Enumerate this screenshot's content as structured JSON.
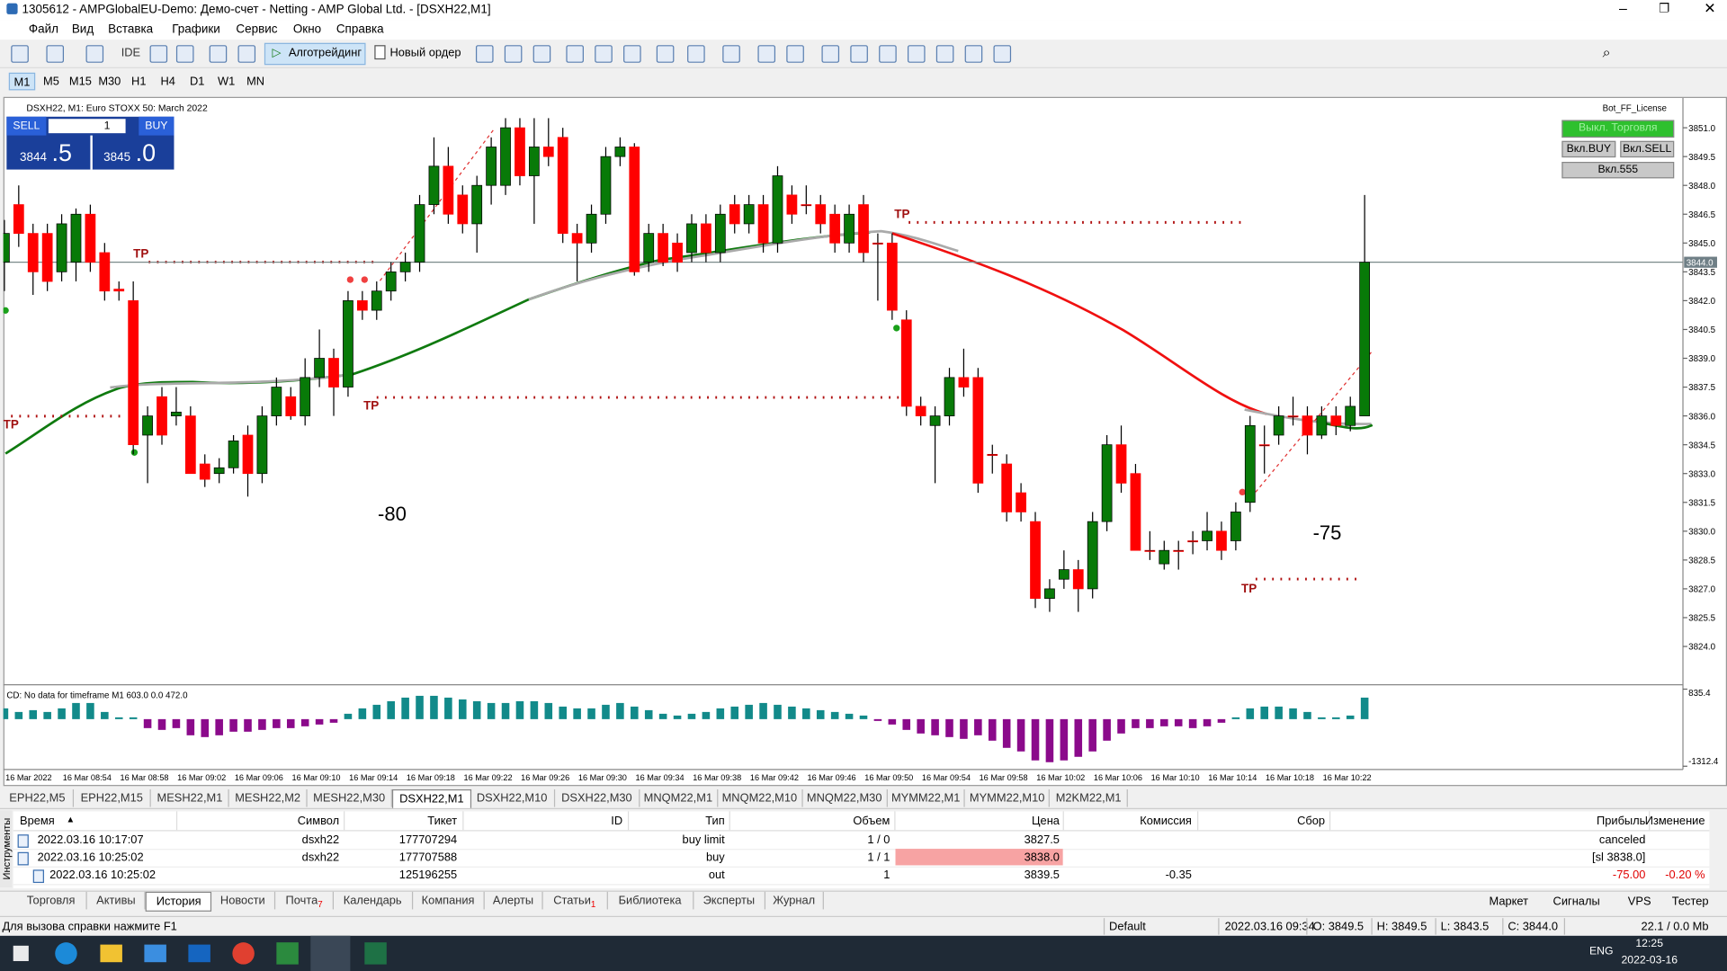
{
  "window": {
    "title": "1305612 - AMPGlobalEU-Demo: Демо-счет - Netting - AMP Global Ltd. - [DSXH22,M1]"
  },
  "menu": [
    "Файл",
    "Вид",
    "Вставка",
    "Графики",
    "Сервис",
    "Окно",
    "Справка"
  ],
  "toolbar": {
    "ide": "IDE",
    "algo": "Алготрейдинг",
    "order": "Новый ордер"
  },
  "timeframes": [
    "M1",
    "M5",
    "M15",
    "M30",
    "H1",
    "H4",
    "D1",
    "W1",
    "MN"
  ],
  "chart": {
    "type": "candlestick",
    "title": "DSXH22, M1:  Euro STOXX 50: March 2022",
    "trade_panel": {
      "sell": "SELL",
      "buy": "BUY",
      "lot": "1",
      "bid_big": "3844",
      "bid_small": ".5",
      "ask_big": "3845",
      "ask_small": ".0"
    },
    "bot": {
      "license": "Bot_FF_License",
      "trade": "Выкл. Торговля",
      "buy": "Вкл.BUY",
      "sell": "Вкл.SELL",
      "b555": "Вкл.555"
    },
    "ylim": [
      3822.55,
      3852.55
    ],
    "yticks": [
      {
        "value": 3824,
        "label": "3824.0"
      },
      {
        "value": 3825.5,
        "label": "3825.5"
      },
      {
        "value": 3827,
        "label": "3827.0"
      },
      {
        "value": 3828.5,
        "label": "3828.5"
      },
      {
        "value": 3830,
        "label": "3830.0"
      },
      {
        "value": 3831.5,
        "label": "3831.5"
      },
      {
        "value": 3833,
        "label": "3833.0"
      },
      {
        "value": 3834.5,
        "label": "3834.5"
      },
      {
        "value": 3836,
        "label": "3836.0"
      },
      {
        "value": 3837.5,
        "label": "3837.5"
      },
      {
        "value": 3839,
        "label": "3839.0"
      },
      {
        "value": 3840.5,
        "label": "3840.5"
      },
      {
        "value": 3842,
        "label": "3842.0"
      },
      {
        "value": 3843.5,
        "label": "3843.5"
      },
      {
        "value": 3845,
        "label": "3845.0"
      },
      {
        "value": 3846.5,
        "label": "3846.5"
      },
      {
        "value": 3848,
        "label": "3848.0"
      },
      {
        "value": 3849.5,
        "label": "3849.5"
      },
      {
        "value": 3851,
        "label": "3851.0"
      }
    ],
    "current_price": {
      "value": 3844,
      "label": "3844.0"
    },
    "colors": {
      "up": "#087a08",
      "down": "#ff0000",
      "hist_up": "#128a8a",
      "hist_down": "#8b0a8b"
    },
    "annotations": [
      "-80",
      "-75"
    ],
    "tp_labels": [
      "TP",
      "TP",
      "TP",
      "TP",
      "TP"
    ],
    "time_labels": [
      "16 Mar 2022",
      "16 Mar 08:54",
      "16 Mar 08:58",
      "16 Mar 09:02",
      "16 Mar 09:06",
      "16 Mar 09:10",
      "16 Mar 09:14",
      "16 Mar 09:18",
      "16 Mar 09:22",
      "16 Mar 09:26",
      "16 Mar 09:30",
      "16 Mar 09:34",
      "16 Mar 09:38",
      "16 Mar 09:42",
      "16 Mar 09:46",
      "16 Mar 09:50",
      "16 Mar 09:54",
      "16 Mar 09:58",
      "16 Mar 10:02",
      "16 Mar 10:06",
      "16 Mar 10:10",
      "16 Mar 10:14",
      "16 Mar 10:18",
      "16 Mar 10:22"
    ],
    "candles": [
      [
        3844,
        3846.2,
        3842.5,
        3845.5
      ],
      [
        3847,
        3848,
        3844.8,
        3845.5
      ],
      [
        3845.5,
        3846,
        3842.3,
        3843.5
      ],
      [
        3845.5,
        3846,
        3842.5,
        3843
      ],
      [
        3843.5,
        3846.5,
        3843,
        3846
      ],
      [
        3844,
        3846.8,
        3843,
        3846.5
      ],
      [
        3846.5,
        3847,
        3843.5,
        3844
      ],
      [
        3844.5,
        3845,
        3842,
        3842.5
      ],
      [
        3842.6,
        3843,
        3842,
        3842.5
      ],
      [
        3842,
        3843,
        3834,
        3834.5
      ],
      [
        3835,
        3836.5,
        3832.5,
        3836
      ],
      [
        3837,
        3837.5,
        3834.5,
        3835
      ],
      [
        3836,
        3837.5,
        3835.5,
        3836.2
      ],
      [
        3836,
        3836.5,
        3833,
        3833
      ],
      [
        3833.5,
        3834,
        3832.3,
        3832.7
      ],
      [
        3833,
        3833.8,
        3832.5,
        3833.3
      ],
      [
        3833.3,
        3835,
        3833,
        3834.7
      ],
      [
        3835,
        3835.5,
        3831.8,
        3833
      ],
      [
        3833,
        3836.5,
        3832.5,
        3836
      ],
      [
        3836,
        3838,
        3835.5,
        3837.5
      ],
      [
        3837,
        3837.5,
        3835.8,
        3836
      ],
      [
        3836,
        3839,
        3835.5,
        3838
      ],
      [
        3838,
        3840.5,
        3837.5,
        3839
      ],
      [
        3839,
        3839.5,
        3836,
        3837.5
      ],
      [
        3837.5,
        3842.5,
        3837,
        3842
      ],
      [
        3842,
        3842.5,
        3841,
        3841.5
      ],
      [
        3841.5,
        3843,
        3841,
        3842.5
      ],
      [
        3842.5,
        3844,
        3842,
        3843.5
      ],
      [
        3843.5,
        3844.5,
        3843,
        3844
      ],
      [
        3844,
        3847.5,
        3843.5,
        3847
      ],
      [
        3847,
        3850.5,
        3846.5,
        3849
      ],
      [
        3849,
        3850,
        3846,
        3846.5
      ],
      [
        3847.5,
        3848,
        3845.5,
        3846
      ],
      [
        3846,
        3848.5,
        3844.5,
        3848
      ],
      [
        3848,
        3850.5,
        3847,
        3850
      ],
      [
        3848,
        3851.5,
        3847.5,
        3851
      ],
      [
        3851,
        3851.5,
        3848,
        3848.5
      ],
      [
        3848.5,
        3851.5,
        3846,
        3850
      ],
      [
        3850,
        3851.5,
        3849,
        3849.5
      ],
      [
        3850.5,
        3851,
        3845,
        3845.5
      ],
      [
        3845.5,
        3846,
        3843,
        3845
      ],
      [
        3845,
        3847,
        3844.5,
        3846.5
      ],
      [
        3846.5,
        3850,
        3846,
        3849.5
      ],
      [
        3849.5,
        3850.5,
        3849,
        3850
      ],
      [
        3850,
        3850.2,
        3843.3,
        3843.5
      ],
      [
        3844,
        3846,
        3843.5,
        3845.5
      ],
      [
        3845.5,
        3846,
        3843.8,
        3844
      ],
      [
        3845,
        3845.5,
        3843.5,
        3844
      ],
      [
        3844.5,
        3846.5,
        3844,
        3846
      ],
      [
        3846,
        3846.5,
        3844,
        3844.5
      ],
      [
        3844.5,
        3847,
        3844,
        3846.5
      ],
      [
        3847,
        3847.5,
        3845.5,
        3846
      ],
      [
        3846,
        3847.5,
        3845.5,
        3847
      ],
      [
        3847,
        3847.5,
        3844.5,
        3845
      ],
      [
        3845,
        3849,
        3844.5,
        3848.5
      ],
      [
        3847.5,
        3848,
        3846,
        3846.5
      ],
      [
        3847,
        3848,
        3846.5,
        3847
      ],
      [
        3847,
        3847.5,
        3845.5,
        3846
      ],
      [
        3846.5,
        3847,
        3844.5,
        3845
      ],
      [
        3845,
        3847,
        3844.5,
        3846.5
      ],
      [
        3847,
        3847.5,
        3844,
        3844.5
      ],
      [
        3845,
        3845.5,
        3842,
        3845
      ],
      [
        3845,
        3845.5,
        3841,
        3841.5
      ],
      [
        3841,
        3841.5,
        3836,
        3836.5
      ],
      [
        3836.5,
        3837,
        3835.5,
        3836
      ],
      [
        3835.5,
        3836.5,
        3832.5,
        3836
      ],
      [
        3836,
        3838.5,
        3835.5,
        3838
      ],
      [
        3838,
        3839.5,
        3837,
        3837.5
      ],
      [
        3838,
        3838.5,
        3832,
        3832.5
      ],
      [
        3834,
        3834.5,
        3833,
        3834
      ],
      [
        3833.5,
        3834,
        3830.5,
        3831
      ],
      [
        3832,
        3832.5,
        3830.5,
        3831
      ],
      [
        3830.5,
        3831,
        3826,
        3826.5
      ],
      [
        3826.5,
        3827.5,
        3825.8,
        3827
      ],
      [
        3827.5,
        3829,
        3827,
        3828
      ],
      [
        3828,
        3828.5,
        3825.8,
        3827
      ],
      [
        3827,
        3831,
        3826.5,
        3830.5
      ],
      [
        3830.5,
        3835,
        3830,
        3834.5
      ],
      [
        3834.5,
        3835.5,
        3832,
        3832.5
      ],
      [
        3833,
        3833.5,
        3829,
        3829
      ],
      [
        3829,
        3830,
        3828.5,
        3829
      ],
      [
        3828.3,
        3829.5,
        3828,
        3829
      ],
      [
        3829,
        3829.5,
        3828,
        3829
      ],
      [
        3829.5,
        3830,
        3828.8,
        3829.5
      ],
      [
        3829.5,
        3831,
        3829,
        3830
      ],
      [
        3830,
        3830.5,
        3828.5,
        3829
      ],
      [
        3829.5,
        3831.5,
        3829,
        3831
      ],
      [
        3831.5,
        3836,
        3831,
        3835.5
      ],
      [
        3834.5,
        3835.5,
        3833,
        3834.5
      ],
      [
        3835,
        3836.5,
        3834.5,
        3836
      ],
      [
        3836,
        3837,
        3835.5,
        3836
      ],
      [
        3836,
        3836.5,
        3834,
        3835
      ],
      [
        3835,
        3836.5,
        3834.8,
        3836
      ],
      [
        3836,
        3836.5,
        3835,
        3835.5
      ],
      [
        3835.5,
        3837,
        3835.2,
        3836.5
      ],
      [
        3836,
        3847.5,
        3836,
        3844
      ]
    ],
    "indicator": {
      "label": "CD: No data for timeframe M1 603.0 0.0 472.0",
      "ylim": [
        -1312.4,
        835.4
      ],
      "yticks": [
        {
          "value": 835.4,
          "label": "835.4"
        },
        {
          "value": -1312.4,
          "label": "-1312.4"
        }
      ],
      "values": [
        300,
        200,
        250,
        200,
        300,
        450,
        450,
        200,
        50,
        50,
        -250,
        -300,
        -250,
        -450,
        -500,
        -450,
        -350,
        -350,
        -300,
        -250,
        -250,
        -200,
        -150,
        -100,
        150,
        300,
        400,
        500,
        600,
        650,
        650,
        600,
        550,
        500,
        450,
        450,
        500,
        500,
        450,
        350,
        300,
        300,
        400,
        450,
        350,
        250,
        150,
        100,
        150,
        200,
        300,
        350,
        400,
        450,
        400,
        350,
        300,
        250,
        200,
        150,
        100,
        -50,
        -150,
        -300,
        -400,
        -450,
        -500,
        -550,
        -450,
        -600,
        -800,
        -900,
        -1150,
        -1200,
        -1150,
        -1050,
        -900,
        -600,
        -400,
        -250,
        -250,
        -200,
        -200,
        -250,
        -200,
        -100,
        50,
        300,
        350,
        350,
        300,
        200,
        50,
        50,
        100,
        600
      ]
    }
  },
  "symbol_tabs": [
    "EPH22,M5",
    "EPH22,M15",
    "MESH22,M1",
    "MESH22,M2",
    "MESH22,M30",
    "DSXH22,M1",
    "DSXH22,M10",
    "DSXH22,M30",
    "MNQM22,M1",
    "MNQM22,M10",
    "MNQM22,M30",
    "MYMM22,M1",
    "MYMM22,M10",
    "M2KM22,M1"
  ],
  "table": {
    "side_label": "Инструменты",
    "headers": {
      "time": "Время",
      "symbol": "Символ",
      "ticket": "Тикет",
      "id": "ID",
      "type": "Тип",
      "volume": "Объем",
      "price": "Цена",
      "commission": "Комиссия",
      "fee": "Сбор",
      "profit": "Прибыль",
      "change": "Изменение"
    },
    "rows": [
      {
        "time": "2022.03.16 10:17:07",
        "symbol": "dsxh22",
        "ticket": "177707294",
        "type": "buy limit",
        "volume": "1 / 0",
        "price": "3827.5",
        "profit": "canceled"
      },
      {
        "time": "2022.03.16 10:25:02",
        "symbol": "dsxh22",
        "ticket": "177707588",
        "type": "buy",
        "volume": "1 / 1",
        "price": "3838.0",
        "profit": "[sl 3838.0]"
      },
      {
        "time": "2022.03.16 10:25:02",
        "ticket": "125196255",
        "type": "out",
        "volume": "1",
        "price": "3839.5",
        "commission": "-0.35",
        "profit": "-75.00",
        "change": "-0.20 %"
      }
    ]
  },
  "bottom_tabs": [
    {
      "label": "Торговля"
    },
    {
      "label": "Активы"
    },
    {
      "label": "История"
    },
    {
      "label": "Новости"
    },
    {
      "label": "Почта",
      "badge": "7"
    },
    {
      "label": "Календарь"
    },
    {
      "label": "Компания"
    },
    {
      "label": "Алерты"
    },
    {
      "label": "Статьи",
      "badge": "1"
    },
    {
      "label": "Библиотека"
    },
    {
      "label": "Эксперты"
    },
    {
      "label": "Журнал"
    }
  ],
  "right_tabs": [
    "Маркет",
    "Сигналы",
    "VPS",
    "Тестер"
  ],
  "status": {
    "help": "Для вызова справки нажмите F1",
    "profile": "Default",
    "time": "2022.03.16 09:34",
    "open": "O: 3849.5",
    "high": "H: 3849.5",
    "low": "L: 3843.5",
    "close": "C: 3844.0",
    "traffic": "22.1 / 0.0 Mb"
  },
  "taskbar": {
    "lang": "ENG",
    "clock": "12:25",
    "date": "2022-03-16"
  }
}
